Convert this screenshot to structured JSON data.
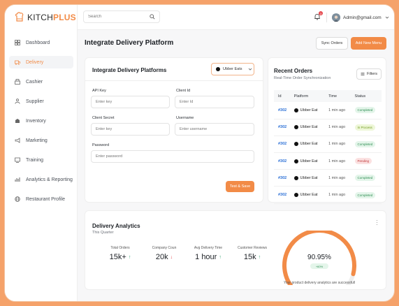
{
  "brand": {
    "logo_prefix": "KITCH",
    "logo_suffix": "PLUS",
    "accent": "#f28b47"
  },
  "sidebar": {
    "items": [
      {
        "label": "Dashboard",
        "icon": "dashboard-icon"
      },
      {
        "label": "Delivery",
        "icon": "delivery-icon",
        "active": true
      },
      {
        "label": "Cashier",
        "icon": "cashier-icon"
      },
      {
        "label": "Supplier",
        "icon": "supplier-icon"
      },
      {
        "label": "Inventory",
        "icon": "inventory-icon"
      },
      {
        "label": "Marketing",
        "icon": "marketing-icon"
      },
      {
        "label": "Training",
        "icon": "training-icon"
      },
      {
        "label": "Analytics & Reporting",
        "icon": "analytics-icon"
      },
      {
        "label": "Restaurant Profile",
        "icon": "globe-icon"
      }
    ]
  },
  "topbar": {
    "search_placeholder": "Search",
    "notification_count": "3",
    "user_email": "Admin@gmail.com"
  },
  "header": {
    "title": "Integrate Delivery Platform",
    "sync_label": "Sync Orders",
    "add_label": "Add New Menu"
  },
  "integration": {
    "title": "Integrate Delivery Platforms",
    "selected_platform": "Ubber Eats",
    "fields": {
      "api_key": {
        "label": "API Key",
        "placeholder": "Enter key"
      },
      "client_id": {
        "label": "Client Id",
        "placeholder": "Enter Id"
      },
      "client_secret": {
        "label": "Client Secret",
        "placeholder": "Enter key"
      },
      "username": {
        "label": "Username",
        "placeholder": "Enter username"
      },
      "password": {
        "label": "Password",
        "placeholder": "Enter password"
      }
    },
    "save_label": "Test & Save"
  },
  "orders": {
    "title": "Recent Orders",
    "subtitle": "Real-Time Order Synchronization",
    "filters_label": "Filters",
    "columns": [
      "Id",
      "Platform",
      "Time",
      "Status"
    ],
    "rows": [
      {
        "id": "#302",
        "platform": "Ubber Eat",
        "time": "1 min ago",
        "status": "Completed",
        "kind": "completed"
      },
      {
        "id": "#302",
        "platform": "Ubber Eat",
        "time": "1 min ago",
        "status": "In Process",
        "kind": "process"
      },
      {
        "id": "#302",
        "platform": "Ubber Eat",
        "time": "1 min ago",
        "status": "Completed",
        "kind": "completed"
      },
      {
        "id": "#302",
        "platform": "Ubber Eat",
        "time": "1 min ago",
        "status": "Pending",
        "kind": "pending"
      },
      {
        "id": "#302",
        "platform": "Ubber Eat",
        "time": "1 min ago",
        "status": "Completed",
        "kind": "completed"
      },
      {
        "id": "#302",
        "platform": "Ubber Eat",
        "time": "1 min ago",
        "status": "Completed",
        "kind": "completed"
      }
    ]
  },
  "analytics": {
    "title": "Delivery Analytics",
    "period": "This Quarter",
    "kpis": [
      {
        "label": "Total Orders",
        "value": "15k+",
        "trend": "up"
      },
      {
        "label": "Company Coun",
        "value": "20k",
        "trend": "down"
      },
      {
        "label": "Avg Delivery Time",
        "value": "1 hour",
        "trend": "up"
      },
      {
        "label": "Customer Reviews",
        "value": "15k",
        "trend": "up"
      }
    ],
    "gauge": {
      "value": "90.95%",
      "fraction": 0.9095,
      "badge": "+60%",
      "caption": "Your product delivery analytics are successfull"
    }
  }
}
